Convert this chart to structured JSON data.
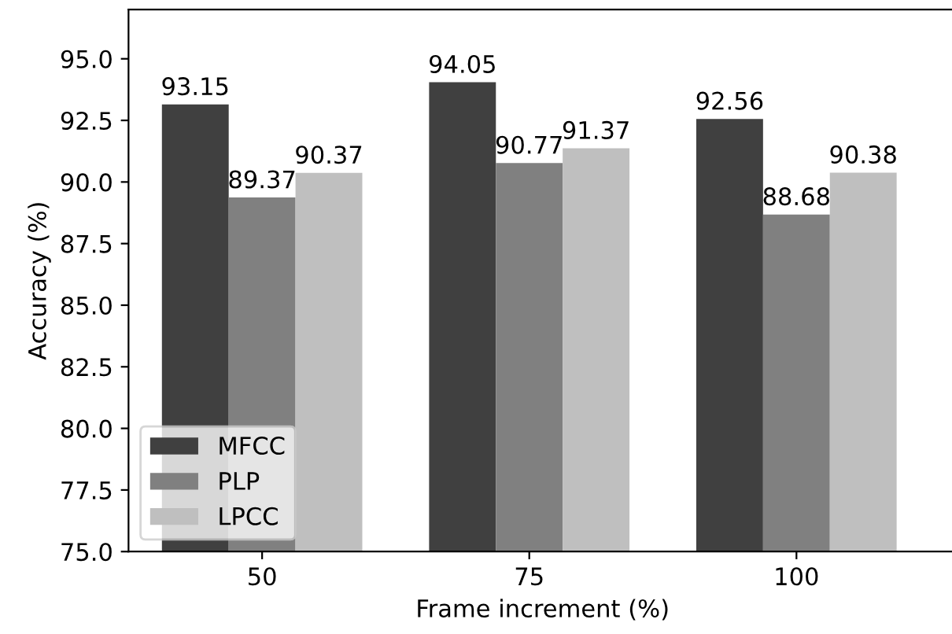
{
  "chart_data": {
    "type": "bar",
    "xlabel": "Frame increment (%)",
    "ylabel": "Accuracy (%)",
    "categories": [
      "50",
      "75",
      "100"
    ],
    "series": [
      {
        "name": "MFCC",
        "color": "#404040",
        "values": [
          93.15,
          94.05,
          92.56
        ]
      },
      {
        "name": "PLP",
        "color": "#808080",
        "values": [
          89.37,
          90.77,
          88.68
        ]
      },
      {
        "name": "LPCC",
        "color": "#bfbfbf",
        "values": [
          90.37,
          91.37,
          90.38
        ]
      }
    ],
    "ylim": [
      75,
      97
    ],
    "yticks": [
      {
        "value": 75,
        "label": "75.0"
      },
      {
        "value": 77.5,
        "label": "77.5"
      },
      {
        "value": 80,
        "label": "80.0"
      },
      {
        "value": 82.5,
        "label": "82.5"
      },
      {
        "value": 85,
        "label": "85.0"
      },
      {
        "value": 87.5,
        "label": "87.5"
      },
      {
        "value": 90,
        "label": "90.0"
      },
      {
        "value": 92.5,
        "label": "92.5"
      },
      {
        "value": 95,
        "label": "95.0"
      }
    ],
    "data_labels": true,
    "legend": "lower left",
    "grid": false
  }
}
